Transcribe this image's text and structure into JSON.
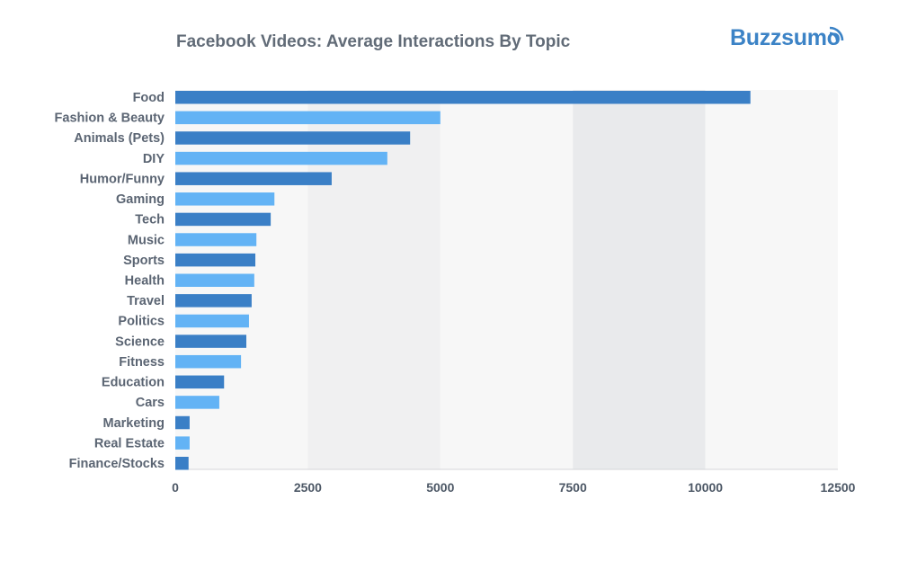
{
  "brand": "Buzzsumo",
  "chart_data": {
    "type": "bar",
    "orientation": "horizontal",
    "title": "Facebook Videos: Average Interactions By Topic",
    "xlabel": "",
    "ylabel": "",
    "xlim": [
      0,
      12500
    ],
    "xticks": [
      0,
      2500,
      5000,
      7500,
      10000,
      12500
    ],
    "grid": "alternating vertical bands",
    "categories": [
      "Food",
      "Fashion & Beauty",
      "Animals (Pets)",
      "DIY",
      "Humor/Funny",
      "Gaming",
      "Tech",
      "Music",
      "Sports",
      "Health",
      "Travel",
      "Politics",
      "Science",
      "Fitness",
      "Education",
      "Cars",
      "Marketing",
      "Real Estate",
      "Finance/Stocks"
    ],
    "values": [
      10850,
      5000,
      4430,
      4000,
      2950,
      1870,
      1800,
      1530,
      1510,
      1490,
      1440,
      1390,
      1340,
      1240,
      920,
      830,
      270,
      270,
      250
    ],
    "colors": [
      "#3a7fc6",
      "#63b3f5"
    ]
  }
}
